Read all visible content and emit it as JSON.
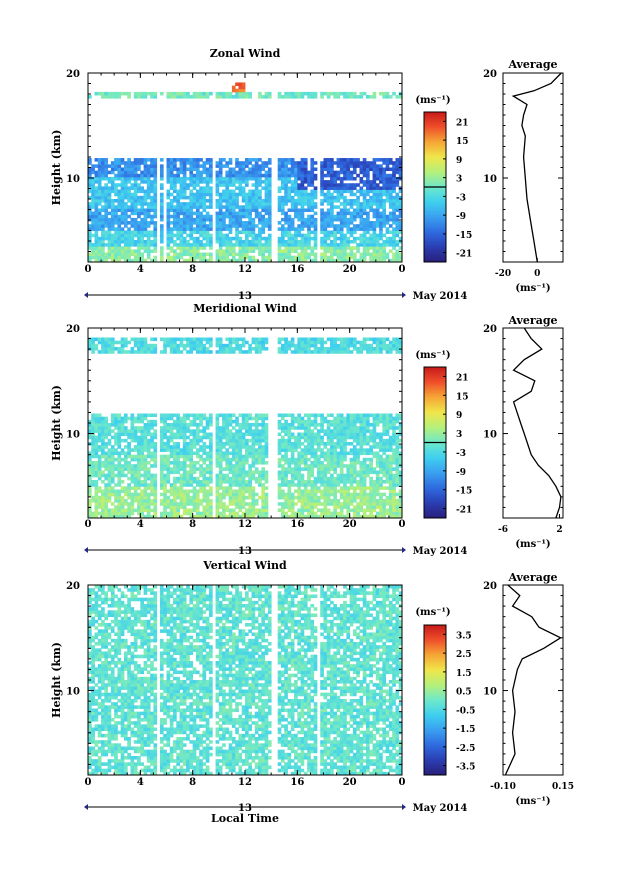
{
  "figure": {
    "xlabel": "Local Time",
    "date_label": "May 2014",
    "day_label": "13",
    "ylabel": "Height (km)",
    "unit_label": "(ms⁻¹)",
    "average_title": "Average",
    "average_xunit": "(ms⁻¹)"
  },
  "chart_data": [
    {
      "type": "heatmap",
      "title": "Zonal Wind",
      "xlabel": "",
      "ylabel": "Height (km)",
      "x_ticks": [
        "0",
        "4",
        "8",
        "12",
        "16",
        "20",
        "0"
      ],
      "x_range_hours": [
        0,
        24
      ],
      "y_ticks": [
        "20",
        "10"
      ],
      "ylim": [
        2,
        20
      ],
      "colorbar_ticks": [
        "21",
        "15",
        "9",
        "3",
        "-3",
        "-9",
        "-15",
        "-21"
      ],
      "colorbar_range": [
        -24,
        24
      ],
      "missing_time_gaps_hours": [
        [
          5.2,
          5.5
        ],
        [
          5.8,
          6.0
        ],
        [
          9.4,
          9.7
        ],
        [
          13.9,
          14.6
        ],
        [
          17.6,
          17.8
        ]
      ],
      "regions": [
        {
          "hours": [
            0,
            24
          ],
          "km": [
            2,
            3.5
          ],
          "value": 2
        },
        {
          "hours": [
            0,
            24
          ],
          "km": [
            3.5,
            5
          ],
          "value": -4
        },
        {
          "hours": [
            0,
            24
          ],
          "km": [
            5,
            7
          ],
          "value": -9
        },
        {
          "hours": [
            0,
            24
          ],
          "km": [
            7,
            10
          ],
          "value": -6
        },
        {
          "hours": [
            0,
            24
          ],
          "km": [
            10,
            12
          ],
          "value": -11
        },
        {
          "hours": [
            16,
            24
          ],
          "km": [
            9,
            12
          ],
          "value": -16
        },
        {
          "hours": [
            0,
            24
          ],
          "km": [
            17.5,
            18.3
          ],
          "value": 0
        },
        {
          "hours": [
            11,
            12
          ],
          "km": [
            18.3,
            19.1
          ],
          "value": 18
        }
      ],
      "average_profile": {
        "xlim": [
          -20,
          15
        ],
        "x_ticks": [
          "-20",
          "0"
        ],
        "heights_km": [
          2,
          4,
          6,
          8,
          10,
          12,
          14,
          15,
          16,
          17,
          17.8,
          18.3,
          19,
          20
        ],
        "values": [
          0,
          -2,
          -4,
          -6,
          -7,
          -8,
          -7,
          -9,
          -8,
          -6,
          -14,
          -2,
          8,
          14
        ]
      }
    },
    {
      "type": "heatmap",
      "title": "Meridional Wind",
      "xlabel": "",
      "ylabel": "Height (km)",
      "x_ticks": [
        "0",
        "4",
        "8",
        "12",
        "16",
        "20",
        "0"
      ],
      "x_range_hours": [
        0,
        24
      ],
      "y_ticks": [
        "20",
        "10"
      ],
      "ylim": [
        2,
        20
      ],
      "colorbar_ticks": [
        "21",
        "15",
        "9",
        "3",
        "-3",
        "-9",
        "-15",
        "-21"
      ],
      "colorbar_range": [
        -24,
        24
      ],
      "missing_time_gaps_hours": [
        [
          5.2,
          5.5
        ],
        [
          9.5,
          9.7
        ],
        [
          13.8,
          14.6
        ]
      ],
      "regions": [
        {
          "hours": [
            0,
            24
          ],
          "km": [
            2,
            5
          ],
          "value": 3
        },
        {
          "hours": [
            0,
            24
          ],
          "km": [
            5,
            8
          ],
          "value": 0
        },
        {
          "hours": [
            0,
            24
          ],
          "km": [
            8,
            12
          ],
          "value": -2
        },
        {
          "hours": [
            0,
            24
          ],
          "km": [
            17.5,
            19
          ],
          "value": -3
        }
      ],
      "average_profile": {
        "xlim": [
          -6,
          2.5
        ],
        "x_ticks": [
          "-6",
          "2"
        ],
        "heights_km": [
          2,
          3,
          4,
          5,
          6,
          7,
          8,
          9,
          10,
          11,
          12,
          13,
          14,
          15,
          16,
          17,
          18,
          19,
          20
        ],
        "values": [
          1.5,
          2,
          2.2,
          1.5,
          0.5,
          -1,
          -2,
          -2.5,
          -3,
          -3.5,
          -4,
          -4.5,
          -2,
          -1.5,
          -4.5,
          -3,
          -0.5,
          -2,
          -3
        ]
      }
    },
    {
      "type": "heatmap",
      "title": "Vertical Wind",
      "xlabel": "Local Time",
      "ylabel": "Height (km)",
      "x_ticks": [
        "0",
        "4",
        "8",
        "12",
        "16",
        "20",
        "0"
      ],
      "x_range_hours": [
        0,
        24
      ],
      "y_ticks": [
        "20",
        "10"
      ],
      "ylim": [
        2,
        20
      ],
      "colorbar_ticks": [
        "3.5",
        "2.5",
        "1.5",
        "0.5",
        "-0.5",
        "-1.5",
        "-2.5",
        "-3.5"
      ],
      "colorbar_range": [
        -4,
        4
      ],
      "missing_time_gaps_hours": [
        [
          5.2,
          5.5
        ],
        [
          5.9,
          6.1
        ],
        [
          9.6,
          9.8
        ],
        [
          13.9,
          14.6
        ],
        [
          17.6,
          17.8
        ]
      ],
      "regions": [
        {
          "hours": [
            0,
            24
          ],
          "km": [
            2,
            20
          ],
          "value": -0.2
        }
      ],
      "average_profile": {
        "xlim": [
          -0.1,
          0.15
        ],
        "x_ticks": [
          "-0.10",
          "0.15"
        ],
        "heights_km": [
          2,
          4,
          6,
          8,
          10,
          12,
          13,
          14,
          15,
          16,
          17,
          18,
          19,
          20
        ],
        "values": [
          -0.09,
          -0.05,
          -0.06,
          -0.05,
          -0.06,
          -0.04,
          -0.02,
          0.07,
          0.14,
          0.05,
          0.02,
          -0.06,
          -0.03,
          -0.08
        ]
      }
    }
  ]
}
